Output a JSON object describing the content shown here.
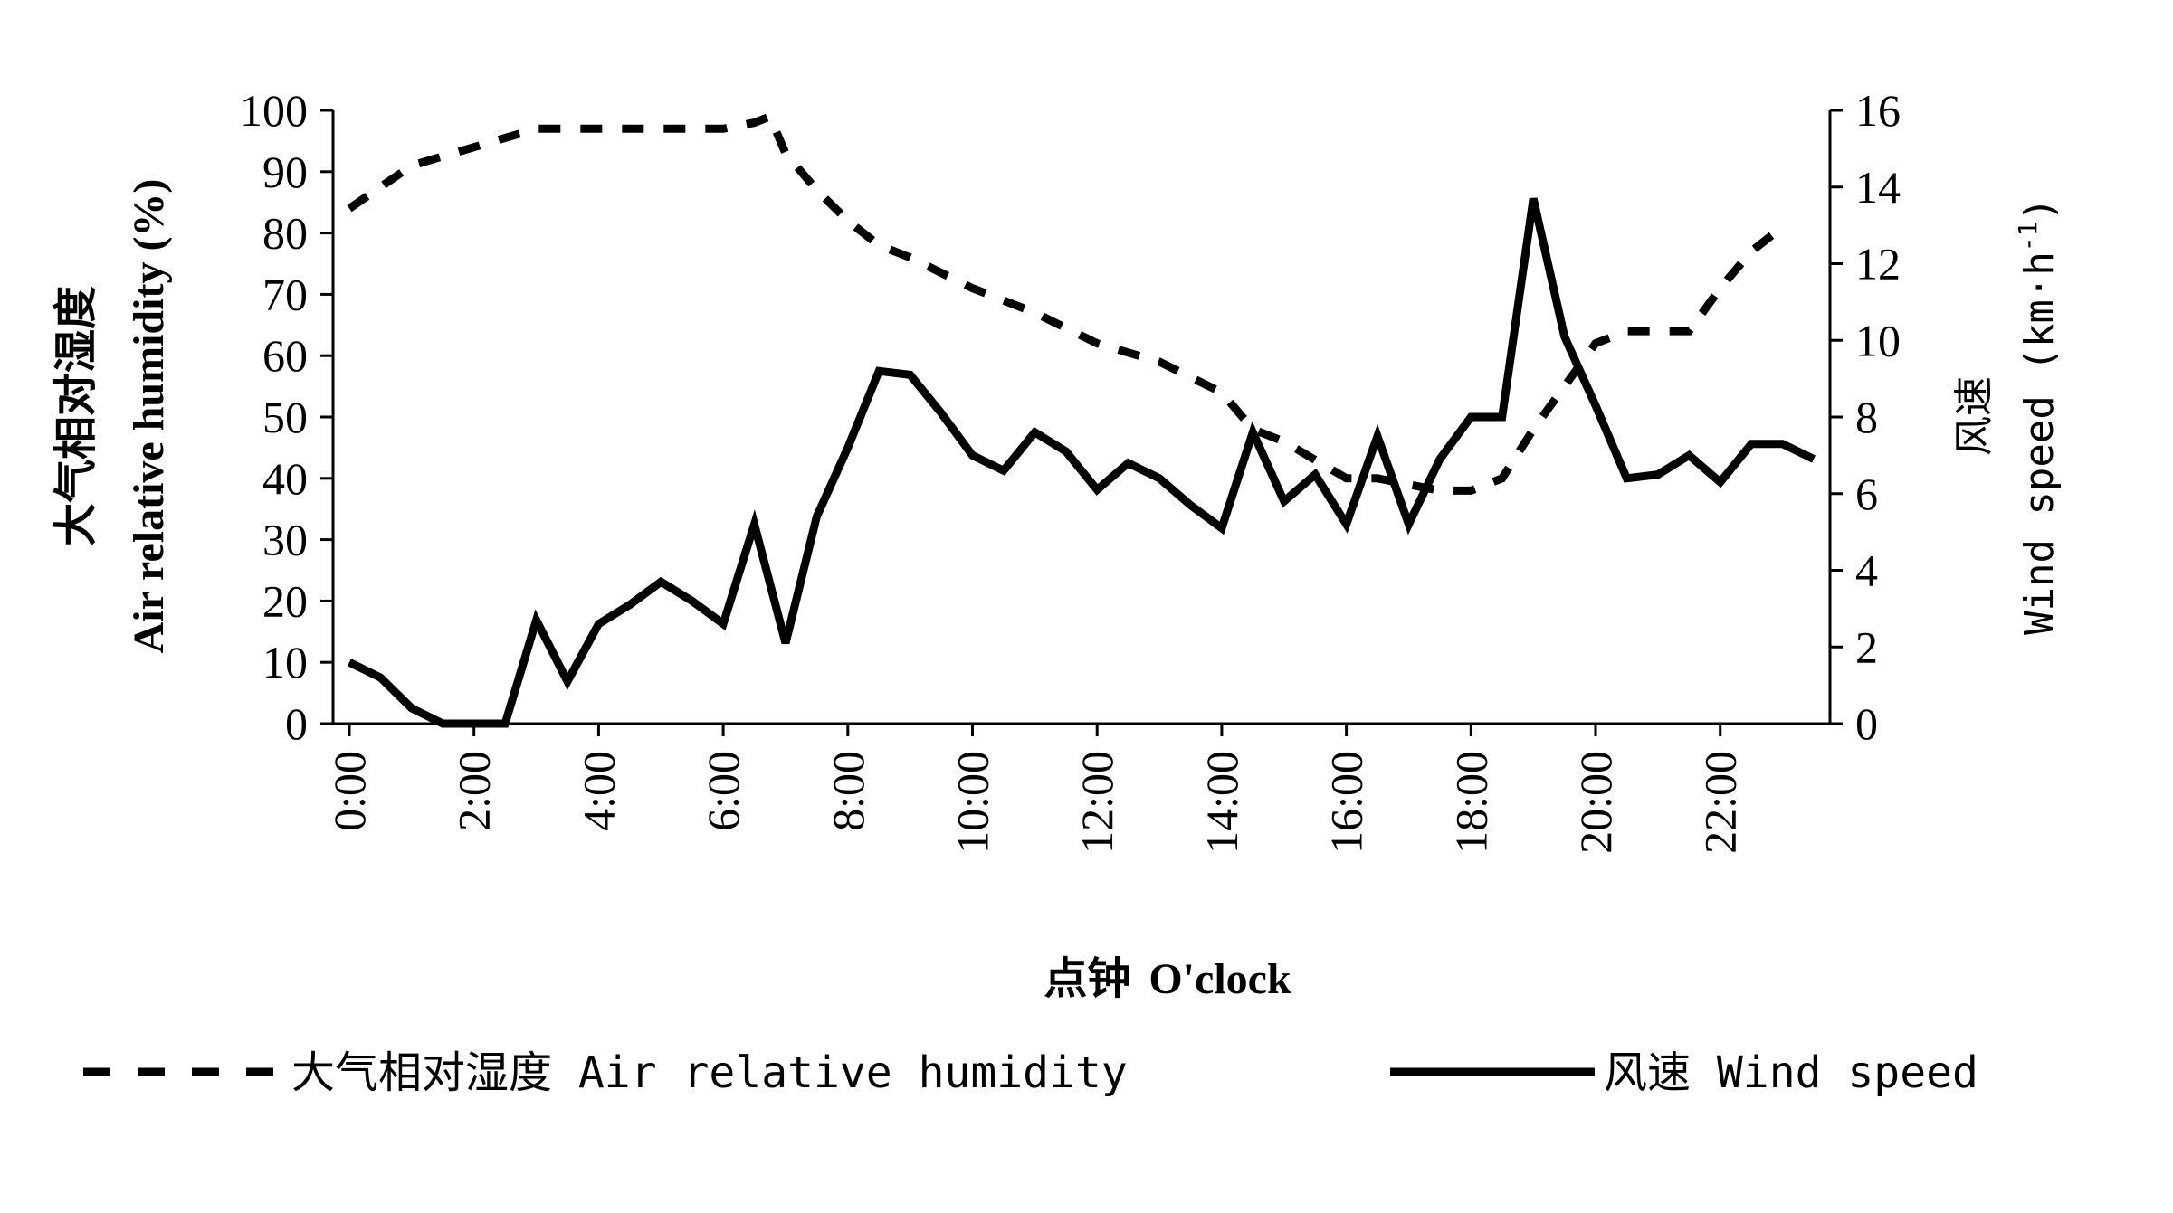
{
  "chart_data": {
    "type": "line",
    "x_label_cn": "点钟",
    "x_label_en": "O'clock",
    "y_left_label_cn": "大气相对湿度",
    "y_left_label_en": "Air relative humidity (%)",
    "y_right_label_cn": "风速",
    "y_right_label_en": "Wind speed (km·h",
    "y_right_label_sup": "-1",
    "y_right_label_close": ")",
    "xlim": [
      0,
      23.5
    ],
    "ylim_left": [
      0,
      100
    ],
    "ylim_right": [
      0,
      16
    ],
    "x_tick_labels": [
      "0:00",
      "2:00",
      "4:00",
      "6:00",
      "8:00",
      "10:00",
      "12:00",
      "14:00",
      "16:00",
      "18:00",
      "20:00",
      "22:00"
    ],
    "y_left_ticks": [
      "0",
      "10",
      "20",
      "30",
      "40",
      "50",
      "60",
      "70",
      "80",
      "90",
      "100"
    ],
    "y_right_ticks": [
      "0",
      "2",
      "4",
      "6",
      "8",
      "10",
      "12",
      "14",
      "16"
    ],
    "grid": false,
    "legend_position": "bottom",
    "series": [
      {
        "name": "大气相对湿度 Air relative humidity",
        "axis": "left",
        "style": "dashed",
        "color": "#000000",
        "x": [
          0,
          1,
          2,
          3,
          3.5,
          4,
          5,
          6,
          6.5,
          6.75,
          7,
          7.5,
          8,
          8.5,
          9,
          10,
          11,
          12,
          13,
          14,
          14.5,
          15,
          16,
          16.5,
          17,
          17.5,
          18,
          18.5,
          19,
          19.5,
          20,
          20.5,
          21,
          21.5,
          22,
          22.5,
          23
        ],
        "y": [
          84,
          91,
          94,
          97,
          97,
          97,
          97,
          97,
          98,
          99,
          93,
          87,
          82,
          78,
          76,
          71,
          67,
          62,
          59,
          54,
          48,
          46,
          40,
          40,
          39,
          38,
          38,
          40,
          48,
          55,
          62,
          64,
          64,
          64,
          71,
          77,
          81
        ]
      },
      {
        "name": "风速 Wind speed",
        "axis": "right",
        "style": "solid",
        "color": "#000000",
        "x": [
          0,
          0.5,
          1,
          1.5,
          2,
          2.5,
          3,
          3.5,
          4,
          4.5,
          5,
          5.5,
          6,
          6.5,
          7,
          7.5,
          8,
          8.5,
          9,
          9.5,
          10,
          10.5,
          11,
          11.5,
          12,
          12.5,
          13,
          13.5,
          14,
          14.5,
          15,
          15.5,
          16,
          16.5,
          17,
          17.5,
          18,
          18.5,
          19,
          19.5,
          20,
          20.5,
          21,
          21.5,
          22,
          22.5,
          23,
          23.5
        ],
        "y": [
          1.6,
          1.2,
          0.4,
          0,
          0,
          0,
          2.7,
          1.1,
          2.6,
          3.1,
          3.7,
          3.2,
          2.6,
          5.2,
          2.1,
          5.4,
          7.2,
          9.2,
          9.1,
          8.1,
          7.0,
          6.6,
          7.6,
          7.1,
          6.1,
          6.8,
          6.4,
          5.7,
          5.1,
          7.6,
          5.8,
          6.5,
          5.2,
          7.5,
          5.2,
          6.9,
          8.0,
          8.0,
          13.7,
          10.1,
          8.3,
          6.4,
          6.5,
          7.0,
          6.3,
          7.3,
          7.3,
          6.9
        ]
      }
    ]
  }
}
